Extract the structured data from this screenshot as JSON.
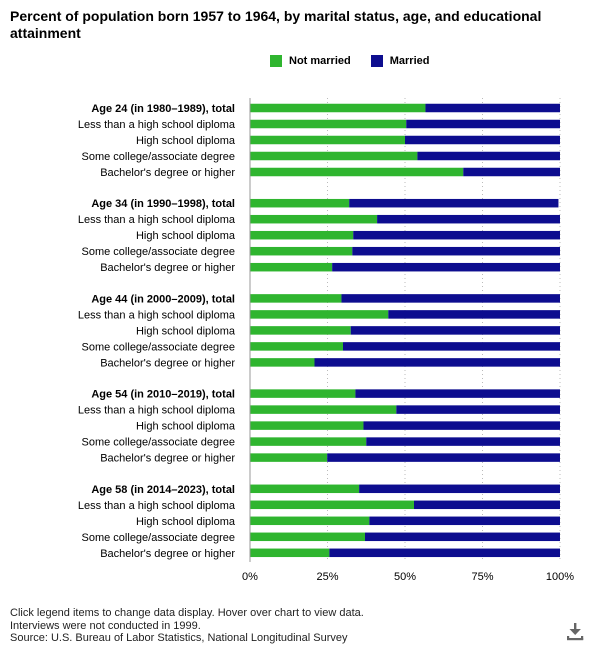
{
  "title": "Percent of population born 1957 to 1964, by marital status, age, and educational attainment",
  "legend": {
    "not_married": "Not married",
    "married": "Married"
  },
  "colors": {
    "not_married": "#2fb52f",
    "married": "#0d0d8f",
    "grid": "#bbbbbb",
    "axis": "#999999"
  },
  "footer": {
    "line1": "Click legend items to change data display. Hover over chart to view data.",
    "line2": "Interviews were not conducted in 1999.",
    "line3": "Source: U.S. Bureau of Labor Statistics, National Longitudinal Survey"
  },
  "icons": {
    "download": "download-icon"
  },
  "chart_data": {
    "type": "bar",
    "orientation": "horizontal",
    "stacked": true,
    "xlim": [
      0,
      100
    ],
    "x_ticks": [
      "0%",
      "25%",
      "50%",
      "75%",
      "100%"
    ],
    "grid": true,
    "legend_position": "top",
    "groups": [
      {
        "label": "Age 24 (in 1980–1989), total",
        "rows": [
          {
            "label": "Age 24 (in 1980–1989), total",
            "bold": true,
            "not_married": 56.6,
            "married": 43.4
          },
          {
            "label": "Less than a high school diploma",
            "bold": false,
            "not_married": 50.4,
            "married": 49.6
          },
          {
            "label": "High school diploma",
            "bold": false,
            "not_married": 50.0,
            "married": 50.0
          },
          {
            "label": "Some college/associate degree",
            "bold": false,
            "not_married": 54.0,
            "married": 46.0
          },
          {
            "label": "Bachelor's degree or higher",
            "bold": false,
            "not_married": 68.8,
            "married": 31.2
          }
        ]
      },
      {
        "label": "Age 34 (in 1990–1998), total",
        "rows": [
          {
            "label": "Age 34 (in 1990–1998), total",
            "bold": true,
            "not_married": 32.0,
            "married": 67.5
          },
          {
            "label": "Less than a high school diploma",
            "bold": false,
            "not_married": 41.0,
            "married": 59.0
          },
          {
            "label": "High school diploma",
            "bold": false,
            "not_married": 33.3,
            "married": 66.7
          },
          {
            "label": "Some college/associate degree",
            "bold": false,
            "not_married": 33.0,
            "married": 67.0
          },
          {
            "label": "Bachelor's degree or higher",
            "bold": false,
            "not_married": 26.5,
            "married": 73.5
          }
        ]
      },
      {
        "label": "Age 44 (in 2000–2009), total",
        "rows": [
          {
            "label": "Age 44 (in 2000–2009), total",
            "bold": true,
            "not_married": 29.5,
            "married": 70.5
          },
          {
            "label": "Less than a high school diploma",
            "bold": false,
            "not_married": 44.6,
            "married": 55.4
          },
          {
            "label": "High school diploma",
            "bold": false,
            "not_married": 32.5,
            "married": 67.5
          },
          {
            "label": "Some college/associate degree",
            "bold": false,
            "not_married": 30.0,
            "married": 70.0
          },
          {
            "label": "Bachelor's degree or higher",
            "bold": false,
            "not_married": 20.8,
            "married": 79.2
          }
        ]
      },
      {
        "label": "Age 54 (in 2010–2019), total",
        "rows": [
          {
            "label": "Age 54 (in 2010–2019), total",
            "bold": true,
            "not_married": 34.0,
            "married": 66.0
          },
          {
            "label": "Less than a high school diploma",
            "bold": false,
            "not_married": 47.2,
            "married": 52.8
          },
          {
            "label": "High school diploma",
            "bold": false,
            "not_married": 36.6,
            "married": 63.4
          },
          {
            "label": "Some college/associate degree",
            "bold": false,
            "not_married": 37.5,
            "married": 62.5
          },
          {
            "label": "Bachelor's degree or higher",
            "bold": false,
            "not_married": 24.9,
            "married": 75.1
          }
        ]
      },
      {
        "label": "Age 58 (in 2014–2023), total",
        "rows": [
          {
            "label": "Age 58 (in 2014–2023), total",
            "bold": true,
            "not_married": 35.2,
            "married": 64.8
          },
          {
            "label": "Less than a high school diploma",
            "bold": false,
            "not_married": 52.9,
            "married": 47.1
          },
          {
            "label": "High school diploma",
            "bold": false,
            "not_married": 38.5,
            "married": 61.5
          },
          {
            "label": "Some college/associate degree",
            "bold": false,
            "not_married": 37.1,
            "married": 62.9
          },
          {
            "label": "Bachelor's degree or higher",
            "bold": false,
            "not_married": 25.6,
            "married": 74.4
          }
        ]
      }
    ]
  }
}
